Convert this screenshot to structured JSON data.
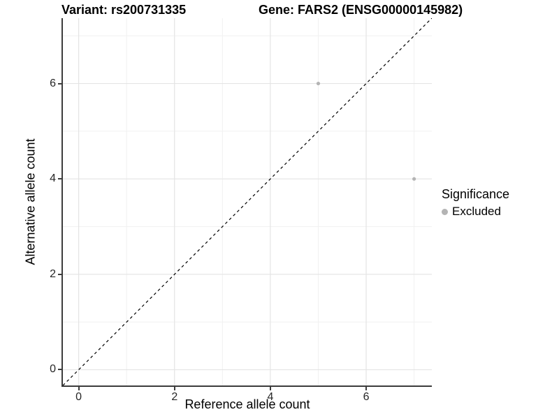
{
  "chart_data": {
    "type": "scatter",
    "title_left": "Variant: rs200731335",
    "title_right": "Gene: FARS2 (ENSG00000145982)",
    "xlabel": "Reference allele count",
    "ylabel": "Alternative allele count",
    "xlim": [
      -0.33,
      7.37
    ],
    "ylim": [
      -0.33,
      7.37
    ],
    "x_ticks": [
      0,
      2,
      4,
      6
    ],
    "y_ticks": [
      0,
      2,
      4,
      6
    ],
    "x_minor_ticks": [
      1,
      3,
      5,
      7
    ],
    "y_minor_ticks": [
      1,
      3,
      5,
      7
    ],
    "grid": true,
    "series": [
      {
        "name": "Excluded",
        "color": "#b4b4b4",
        "points": [
          {
            "x": 5,
            "y": 6
          },
          {
            "x": 7,
            "y": 4
          }
        ]
      }
    ],
    "reference_line": {
      "type": "identity",
      "style": "dashed",
      "color": "#000000"
    },
    "legend": {
      "title": "Significance",
      "position": "right",
      "items": [
        {
          "label": "Excluded",
          "color": "#b4b4b4"
        }
      ]
    },
    "colors": {
      "grid_major": "#e4e4e4",
      "grid_minor": "#f1f1f1",
      "axis_line": "#3c3c3c",
      "tick_label": "#262626",
      "point": "#b4b4b4"
    }
  }
}
